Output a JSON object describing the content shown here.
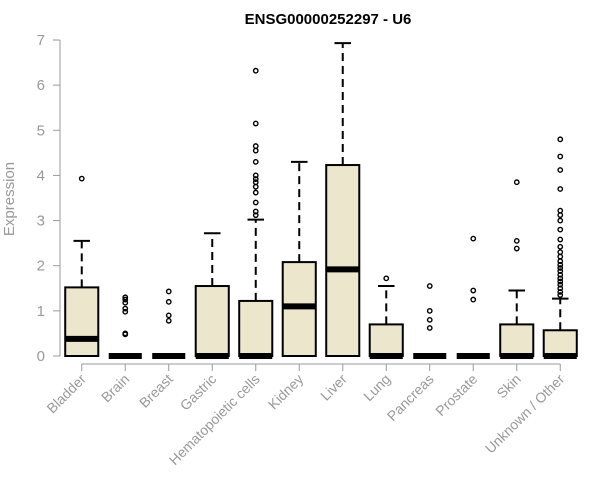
{
  "chart_data": {
    "type": "boxplot",
    "title": "ENSG00000252297 - U6",
    "xlabel": "",
    "ylabel": "Expression",
    "ylim": [
      0,
      7
    ],
    "yticks": [
      0,
      1,
      2,
      3,
      4,
      5,
      6,
      7
    ],
    "grid": false,
    "legend": "none",
    "colors": {
      "box_fill": "#ece6cd",
      "box_stroke": "#000000",
      "axis": "#999999"
    },
    "categories": [
      "Bladder",
      "Brain",
      "Breast",
      "Gastric",
      "Hematopoietic cells",
      "Kidney",
      "Liver",
      "Lung",
      "Pancreas",
      "Prostate",
      "Skin",
      "Unknown / Other"
    ],
    "boxes": [
      {
        "category": "Bladder",
        "min": 0,
        "q1": 0,
        "median": 0.38,
        "q3": 1.52,
        "max": 2.55,
        "outliers": [
          3.93
        ]
      },
      {
        "category": "Brain",
        "min": 0,
        "q1": 0,
        "median": 0,
        "q3": 0,
        "max": 0,
        "outliers": [
          0.48,
          0.5,
          0.98,
          1.05,
          1.18,
          1.25,
          1.3
        ]
      },
      {
        "category": "Breast",
        "min": 0,
        "q1": 0,
        "median": 0,
        "q3": 0,
        "max": 0,
        "outliers": [
          0.78,
          0.9,
          1.2,
          1.43
        ]
      },
      {
        "category": "Gastric",
        "min": 0,
        "q1": 0,
        "median": 0,
        "q3": 1.55,
        "max": 2.72,
        "outliers": []
      },
      {
        "category": "Hematopoietic cells",
        "min": 0,
        "q1": 0,
        "median": 0,
        "q3": 1.22,
        "max": 3.02,
        "outliers": [
          3.12,
          3.2,
          3.4,
          3.62,
          3.75,
          3.85,
          3.92,
          4.0,
          4.3,
          4.55,
          4.65,
          5.15,
          6.32
        ]
      },
      {
        "category": "Kidney",
        "min": 0,
        "q1": 0,
        "median": 1.1,
        "q3": 2.08,
        "max": 4.3,
        "outliers": []
      },
      {
        "category": "Liver",
        "min": 0,
        "q1": 0,
        "median": 1.92,
        "q3": 4.23,
        "max": 6.93,
        "outliers": []
      },
      {
        "category": "Lung",
        "min": 0,
        "q1": 0,
        "median": 0,
        "q3": 0.7,
        "max": 1.55,
        "outliers": [
          1.72
        ]
      },
      {
        "category": "Pancreas",
        "min": 0,
        "q1": 0,
        "median": 0,
        "q3": 0,
        "max": 0,
        "outliers": [
          0.62,
          0.8,
          1.0,
          1.55
        ]
      },
      {
        "category": "Prostate",
        "min": 0,
        "q1": 0,
        "median": 0,
        "q3": 0,
        "max": 0,
        "outliers": [
          1.25,
          1.45,
          2.6
        ]
      },
      {
        "category": "Skin",
        "min": 0,
        "q1": 0,
        "median": 0,
        "q3": 0.7,
        "max": 1.45,
        "outliers": [
          2.38,
          2.55,
          3.85
        ]
      },
      {
        "category": "Unknown / Other",
        "min": 0,
        "q1": 0,
        "median": 0,
        "q3": 0.57,
        "max": 1.27,
        "outliers": [
          1.35,
          1.42,
          1.5,
          1.58,
          1.65,
          1.72,
          1.8,
          1.88,
          1.95,
          2.02,
          2.1,
          2.2,
          2.3,
          2.42,
          2.58,
          2.8,
          3.0,
          3.12,
          3.22,
          3.7,
          4.12,
          4.42,
          4.8
        ]
      }
    ]
  }
}
